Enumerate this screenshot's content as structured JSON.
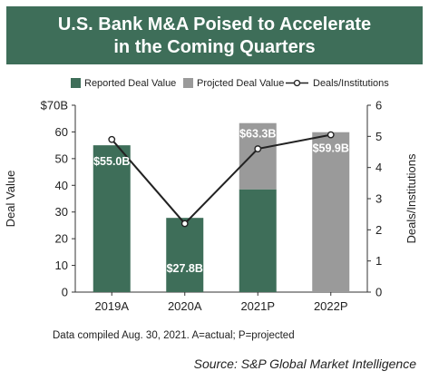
{
  "header": {
    "title_line1": "U.S. Bank M&A Poised to Accelerate",
    "title_line2": "in the Coming Quarters"
  },
  "colors": {
    "banner": "#3e6e59",
    "reported": "#3e6e59",
    "projected": "#9a9a9a",
    "line": "#222222"
  },
  "chart_data": {
    "type": "bar",
    "categories": [
      "2019A",
      "2020A",
      "2021P",
      "2022P"
    ],
    "series": [
      {
        "name": "Reported Deal Value",
        "values": [
          55.0,
          27.8,
          38.5,
          0
        ]
      },
      {
        "name": "Projcted Deal Value",
        "values": [
          0,
          0,
          24.8,
          59.9
        ]
      },
      {
        "name": "Deals/Institutions",
        "type": "line",
        "axis": "right",
        "values": [
          4.9,
          2.2,
          4.6,
          5.05
        ]
      }
    ],
    "data_labels": [
      "$55.0B",
      "$27.8B",
      "$63.3B",
      "$59.9B"
    ],
    "ylabel": "Deal Value",
    "y2label": "Deals/Institutions",
    "ylim": [
      0,
      70
    ],
    "y2lim": [
      0,
      6
    ],
    "y_ticks": [
      "0",
      "10",
      "20",
      "30",
      "40",
      "50",
      "60",
      "$70B"
    ],
    "y2_ticks": [
      "0",
      "1",
      "2",
      "3",
      "4",
      "5",
      "6"
    ],
    "legend_position": "top",
    "grid": false
  },
  "footer": {
    "note": "Data compiled Aug. 30, 2021. A=actual; P=projected",
    "source": "Source: S&P Global Market Intelligence"
  }
}
